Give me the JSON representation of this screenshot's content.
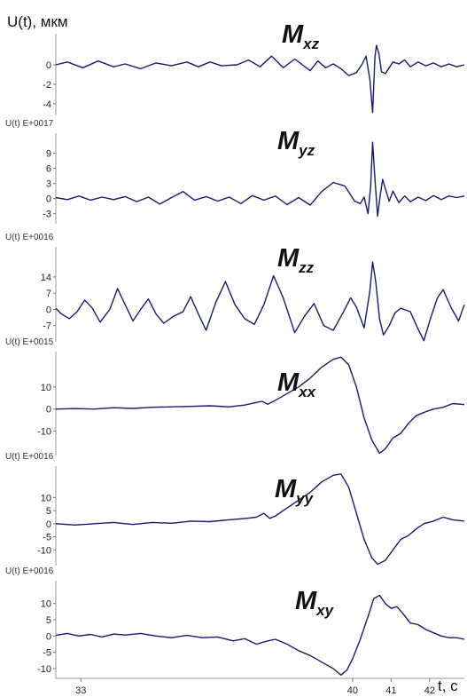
{
  "chart_data": {
    "type": "line",
    "y_axis_label": "U(t), мкм",
    "x_axis_label": "t, c",
    "x_range": [
      32.3,
      42.9
    ],
    "x_ticks": [
      "33",
      "40",
      "41",
      "42"
    ],
    "x_tick_values": [
      32.95,
      40.0,
      41.0,
      42.0
    ],
    "line_color": "#1a1a6e",
    "panels": [
      {
        "title_main": "M",
        "title_sub": "xz",
        "unit_label": "",
        "ylim": [
          -5.2,
          3.2
        ],
        "y_ticks": [
          -4,
          -2,
          0
        ],
        "y_tick_labels": [
          "-4",
          "-2",
          "0"
        ],
        "points": [
          [
            32.3,
            0.0
          ],
          [
            32.6,
            0.3
          ],
          [
            33.0,
            -0.3
          ],
          [
            33.4,
            0.4
          ],
          [
            33.8,
            -0.2
          ],
          [
            34.1,
            0.1
          ],
          [
            34.5,
            -0.4
          ],
          [
            34.9,
            0.2
          ],
          [
            35.3,
            -0.1
          ],
          [
            35.7,
            0.3
          ],
          [
            36.0,
            -0.2
          ],
          [
            36.3,
            0.3
          ],
          [
            36.6,
            -0.1
          ],
          [
            37.0,
            0.0
          ],
          [
            37.3,
            0.5
          ],
          [
            37.6,
            -0.2
          ],
          [
            37.9,
            0.9
          ],
          [
            38.2,
            -0.3
          ],
          [
            38.5,
            0.6
          ],
          [
            38.7,
            0.0
          ],
          [
            38.9,
            -0.6
          ],
          [
            39.1,
            0.4
          ],
          [
            39.3,
            -0.3
          ],
          [
            39.5,
            0.1
          ],
          [
            39.7,
            -0.4
          ],
          [
            39.9,
            -1.1
          ],
          [
            40.1,
            -0.8
          ],
          [
            40.25,
            0.1
          ],
          [
            40.35,
            0.9
          ],
          [
            40.45,
            -1.5
          ],
          [
            40.52,
            -4.9
          ],
          [
            40.58,
            0.8
          ],
          [
            40.62,
            2.0
          ],
          [
            40.68,
            1.2
          ],
          [
            40.75,
            -0.7
          ],
          [
            40.85,
            -0.9
          ],
          [
            40.95,
            -0.3
          ],
          [
            41.05,
            0.3
          ],
          [
            41.2,
            0.1
          ],
          [
            41.35,
            0.5
          ],
          [
            41.5,
            -0.2
          ],
          [
            41.7,
            0.3
          ],
          [
            41.9,
            -0.1
          ],
          [
            42.1,
            0.2
          ],
          [
            42.3,
            -0.2
          ],
          [
            42.5,
            0.1
          ],
          [
            42.7,
            -0.2
          ],
          [
            42.9,
            0.0
          ]
        ]
      },
      {
        "title_main": "M",
        "title_sub": "yz",
        "unit_label": "U(t) E+0017",
        "ylim": [
          -5,
          13
        ],
        "y_ticks": [
          -3,
          0,
          3,
          6,
          9
        ],
        "y_tick_labels": [
          "-3",
          "0",
          "3",
          "6",
          "9"
        ],
        "points": [
          [
            32.3,
            0.2
          ],
          [
            32.6,
            -0.2
          ],
          [
            32.9,
            0.5
          ],
          [
            33.2,
            -0.3
          ],
          [
            33.5,
            0.3
          ],
          [
            33.8,
            -0.2
          ],
          [
            34.1,
            0.4
          ],
          [
            34.4,
            -0.6
          ],
          [
            34.7,
            0.3
          ],
          [
            35.0,
            -1.1
          ],
          [
            35.3,
            0.2
          ],
          [
            35.6,
            1.4
          ],
          [
            35.9,
            -0.3
          ],
          [
            36.2,
            0.4
          ],
          [
            36.5,
            -0.5
          ],
          [
            36.8,
            0.3
          ],
          [
            37.1,
            -1.0
          ],
          [
            37.4,
            0.6
          ],
          [
            37.7,
            -0.3
          ],
          [
            38.0,
            0.5
          ],
          [
            38.3,
            -1.2
          ],
          [
            38.6,
            0.2
          ],
          [
            38.9,
            -1.3
          ],
          [
            39.2,
            1.4
          ],
          [
            39.5,
            3.2
          ],
          [
            39.8,
            2.5
          ],
          [
            40.05,
            -0.5
          ],
          [
            40.2,
            -1.0
          ],
          [
            40.3,
            0.3
          ],
          [
            40.4,
            -3.0
          ],
          [
            40.47,
            2.5
          ],
          [
            40.52,
            11.2
          ],
          [
            40.58,
            4.0
          ],
          [
            40.65,
            -3.5
          ],
          [
            40.72,
            0.8
          ],
          [
            40.78,
            3.8
          ],
          [
            40.85,
            2.0
          ],
          [
            40.95,
            -0.5
          ],
          [
            41.05,
            1.5
          ],
          [
            41.2,
            -0.8
          ],
          [
            41.35,
            0.5
          ],
          [
            41.5,
            -0.6
          ],
          [
            41.7,
            0.3
          ],
          [
            41.9,
            -0.4
          ],
          [
            42.1,
            0.6
          ],
          [
            42.3,
            -0.2
          ],
          [
            42.5,
            0.5
          ],
          [
            42.7,
            0.2
          ],
          [
            42.9,
            0.5
          ]
        ]
      },
      {
        "title_main": "M",
        "title_sub": "zz",
        "unit_label": "U(t) E+0016",
        "ylim": [
          -14,
          27
        ],
        "y_ticks": [
          -7,
          0,
          7,
          14
        ],
        "y_tick_labels": [
          "-7",
          "0",
          "7",
          "14"
        ],
        "points": [
          [
            32.3,
            0.5
          ],
          [
            32.45,
            -2.0
          ],
          [
            32.65,
            -4.0
          ],
          [
            32.85,
            -1.0
          ],
          [
            33.05,
            4.0
          ],
          [
            33.25,
            0.5
          ],
          [
            33.45,
            -5.5
          ],
          [
            33.7,
            0.0
          ],
          [
            33.9,
            9.0
          ],
          [
            34.1,
            2.0
          ],
          [
            34.3,
            -5.0
          ],
          [
            34.5,
            0.0
          ],
          [
            34.7,
            4.5
          ],
          [
            34.9,
            -2.0
          ],
          [
            35.1,
            -6.0
          ],
          [
            35.35,
            -3.0
          ],
          [
            35.6,
            -1.0
          ],
          [
            35.8,
            5.5
          ],
          [
            36.0,
            -2.0
          ],
          [
            36.2,
            -9.0
          ],
          [
            36.45,
            3.0
          ],
          [
            36.7,
            12.0
          ],
          [
            36.95,
            2.0
          ],
          [
            37.2,
            -4.0
          ],
          [
            37.45,
            -6.5
          ],
          [
            37.7,
            2.0
          ],
          [
            37.95,
            14.5
          ],
          [
            38.2,
            5.0
          ],
          [
            38.5,
            -10.0
          ],
          [
            38.75,
            -3.0
          ],
          [
            39.0,
            2.5
          ],
          [
            39.25,
            -7.0
          ],
          [
            39.5,
            -9.0
          ],
          [
            39.75,
            -1.5
          ],
          [
            39.95,
            5.0
          ],
          [
            40.1,
            1.0
          ],
          [
            40.3,
            -8.0
          ],
          [
            40.45,
            8.0
          ],
          [
            40.52,
            20.5
          ],
          [
            40.6,
            12.0
          ],
          [
            40.7,
            -4.0
          ],
          [
            40.8,
            -11.0
          ],
          [
            40.95,
            -7.0
          ],
          [
            41.1,
            -1.5
          ],
          [
            41.25,
            0.5
          ],
          [
            41.5,
            -1.0
          ],
          [
            41.7,
            -8.5
          ],
          [
            41.85,
            -13.5
          ],
          [
            42.0,
            -5.0
          ],
          [
            42.2,
            5.0
          ],
          [
            42.35,
            8.5
          ],
          [
            42.55,
            1.0
          ],
          [
            42.75,
            -5.0
          ],
          [
            42.9,
            2.0
          ]
        ]
      },
      {
        "title_main": "M",
        "title_sub": "xx",
        "unit_label": "U(t) E+0015",
        "ylim": [
          -21,
          26
        ],
        "y_ticks": [
          -10,
          0,
          10
        ],
        "y_tick_labels": [
          "-10",
          "0",
          "10"
        ],
        "points": [
          [
            32.3,
            0.0
          ],
          [
            32.8,
            0.2
          ],
          [
            33.3,
            0.0
          ],
          [
            33.8,
            0.6
          ],
          [
            34.3,
            0.3
          ],
          [
            34.8,
            0.8
          ],
          [
            35.3,
            1.0
          ],
          [
            35.8,
            1.2
          ],
          [
            36.3,
            1.5
          ],
          [
            36.8,
            1.0
          ],
          [
            37.2,
            1.8
          ],
          [
            37.5,
            3.0
          ],
          [
            37.65,
            3.5
          ],
          [
            37.8,
            2.2
          ],
          [
            38.0,
            4.0
          ],
          [
            38.3,
            7.0
          ],
          [
            38.6,
            10.0
          ],
          [
            38.9,
            14.0
          ],
          [
            39.2,
            19.0
          ],
          [
            39.5,
            22.5
          ],
          [
            39.7,
            23.5
          ],
          [
            39.9,
            20.0
          ],
          [
            40.1,
            10.0
          ],
          [
            40.3,
            -4.0
          ],
          [
            40.5,
            -14.0
          ],
          [
            40.7,
            -20.0
          ],
          [
            40.85,
            -18.0
          ],
          [
            41.05,
            -13.0
          ],
          [
            41.25,
            -11.0
          ],
          [
            41.45,
            -6.5
          ],
          [
            41.65,
            -3.0
          ],
          [
            41.85,
            -1.5
          ],
          [
            42.1,
            0.0
          ],
          [
            42.35,
            0.8
          ],
          [
            42.6,
            2.5
          ],
          [
            42.9,
            2.0
          ]
        ]
      },
      {
        "title_main": "M",
        "title_sub": "yy",
        "unit_label": "U(t) E+0016",
        "ylim": [
          -16,
          22
        ],
        "y_ticks": [
          -10,
          -5,
          0,
          5,
          10
        ],
        "y_tick_labels": [
          "-10",
          "-5",
          "0",
          "5",
          "10"
        ],
        "points": [
          [
            32.3,
            0.0
          ],
          [
            32.8,
            -0.5
          ],
          [
            33.3,
            0.0
          ],
          [
            33.8,
            0.5
          ],
          [
            34.3,
            -0.3
          ],
          [
            34.8,
            0.5
          ],
          [
            35.3,
            0.2
          ],
          [
            35.8,
            1.0
          ],
          [
            36.3,
            0.8
          ],
          [
            36.8,
            1.5
          ],
          [
            37.2,
            2.0
          ],
          [
            37.5,
            2.5
          ],
          [
            37.7,
            4.0
          ],
          [
            37.85,
            2.0
          ],
          [
            38.0,
            3.0
          ],
          [
            38.3,
            6.0
          ],
          [
            38.6,
            9.0
          ],
          [
            38.9,
            12.0
          ],
          [
            39.2,
            16.0
          ],
          [
            39.5,
            18.5
          ],
          [
            39.7,
            19.0
          ],
          [
            39.9,
            14.0
          ],
          [
            40.1,
            4.0
          ],
          [
            40.3,
            -6.0
          ],
          [
            40.5,
            -13.0
          ],
          [
            40.65,
            -15.5
          ],
          [
            40.85,
            -14.0
          ],
          [
            41.05,
            -10.0
          ],
          [
            41.25,
            -6.0
          ],
          [
            41.45,
            -4.5
          ],
          [
            41.65,
            -2.0
          ],
          [
            41.85,
            0.0
          ],
          [
            42.1,
            1.0
          ],
          [
            42.35,
            2.5
          ],
          [
            42.6,
            1.5
          ],
          [
            42.9,
            1.0
          ]
        ]
      },
      {
        "title_main": "M",
        "title_sub": "xy",
        "unit_label": "U(t) E+0016",
        "ylim": [
          -13,
          17
        ],
        "y_ticks": [
          -10,
          -5,
          0,
          5,
          10
        ],
        "y_tick_labels": [
          "-10",
          "-5",
          "0",
          "5",
          "10"
        ],
        "points": [
          [
            32.3,
            0.2
          ],
          [
            32.6,
            0.8
          ],
          [
            32.9,
            0.0
          ],
          [
            33.2,
            0.5
          ],
          [
            33.5,
            -0.3
          ],
          [
            33.8,
            0.6
          ],
          [
            34.1,
            0.3
          ],
          [
            34.5,
            0.8
          ],
          [
            34.9,
            0.0
          ],
          [
            35.3,
            -0.5
          ],
          [
            35.7,
            0.2
          ],
          [
            36.1,
            -0.5
          ],
          [
            36.5,
            -0.3
          ],
          [
            36.9,
            -1.5
          ],
          [
            37.2,
            -0.8
          ],
          [
            37.5,
            -2.5
          ],
          [
            37.8,
            -1.5
          ],
          [
            38.0,
            -1.0
          ],
          [
            38.3,
            -2.5
          ],
          [
            38.6,
            -4.5
          ],
          [
            38.9,
            -6.0
          ],
          [
            39.2,
            -8.0
          ],
          [
            39.5,
            -10.0
          ],
          [
            39.7,
            -12.0
          ],
          [
            39.85,
            -10.5
          ],
          [
            40.0,
            -7.0
          ],
          [
            40.2,
            -1.0
          ],
          [
            40.4,
            6.0
          ],
          [
            40.55,
            11.5
          ],
          [
            40.7,
            12.5
          ],
          [
            40.85,
            10.0
          ],
          [
            41.0,
            8.5
          ],
          [
            41.15,
            9.0
          ],
          [
            41.3,
            7.0
          ],
          [
            41.5,
            4.0
          ],
          [
            41.7,
            3.5
          ],
          [
            41.9,
            2.0
          ],
          [
            42.1,
            1.0
          ],
          [
            42.3,
            0.0
          ],
          [
            42.5,
            -0.5
          ],
          [
            42.7,
            -0.5
          ],
          [
            42.9,
            -1.0
          ]
        ]
      }
    ]
  }
}
